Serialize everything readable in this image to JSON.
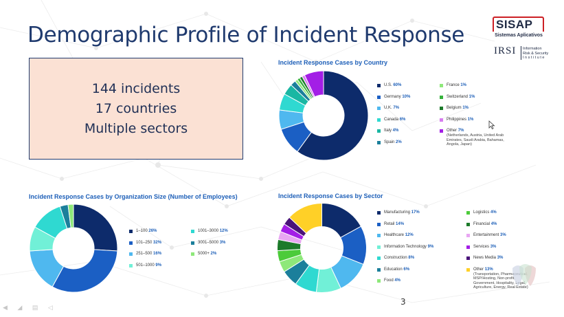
{
  "slide": {
    "title": "Demographic Profile of Incident Response",
    "callout": [
      "144 incidents",
      "17 countries",
      "Multiple sectors"
    ],
    "page_number": "3"
  },
  "logo": {
    "brand": "SISAP",
    "tagline": "Sistemas Aplicativos",
    "irsi": "IRSI",
    "irsi_line1": "Information",
    "irsi_line2": "Risk & Security",
    "irsi_line3": "I n s t i t u t e",
    "colors": {
      "red": "#cc1f24",
      "dark": "#1f2a44"
    }
  },
  "icons": [
    "cursor-arrow-icon",
    "watermark-logo-icon"
  ],
  "chart_data": [
    {
      "type": "pie",
      "title": "Incident Response Cases by Country",
      "legend_position": "right",
      "categories": [
        "U.S.",
        "Germany",
        "U.K.",
        "Canada",
        "Italy",
        "Spain",
        "France",
        "Switzerland",
        "Belgium",
        "Philippines",
        "Other"
      ],
      "values": [
        60,
        10,
        7,
        6,
        4,
        2,
        1,
        1,
        1,
        1,
        7
      ],
      "labels": [
        "60%",
        "10%",
        "7%",
        "6%",
        "4%",
        "2%",
        "1%",
        "1%",
        "1%",
        "1%",
        "7%"
      ],
      "colors": [
        "#0d2b6b",
        "#1b5fc4",
        "#4fb8ef",
        "#2fd9d1",
        "#1ab7a3",
        "#1b7f9b",
        "#8ee87a",
        "#36b23c",
        "#1c7a2a",
        "#d77cf0",
        "#a31ee6"
      ],
      "note": "(Netherlands, Austria, United Arab Emirates, Saudi Arabia, Bahamas, Angola, Japan)"
    },
    {
      "type": "pie",
      "title": "Incident Response Cases by Organization Size (Number of Employees)",
      "legend_position": "right",
      "categories": [
        "1–100",
        "101–250",
        "251–500",
        "501–1000",
        "1001–3000",
        "3001–5000",
        "5000+"
      ],
      "values": [
        26,
        32,
        16,
        9,
        12,
        3,
        2
      ],
      "labels": [
        "26%",
        "32%",
        "16%",
        "9%",
        "12%",
        "3%",
        "2%"
      ],
      "colors": [
        "#0d2b6b",
        "#1b5fc4",
        "#4fb8ef",
        "#71f0d7",
        "#2fd9d1",
        "#1b7f9b",
        "#8ee87a"
      ]
    },
    {
      "type": "pie",
      "title": "Incident Response Cases by Sector",
      "legend_position": "right",
      "categories": [
        "Manufacturing",
        "Retail",
        "Healthcare",
        "Information Technology",
        "Construction",
        "Education",
        "Food",
        "Logistics",
        "Financial",
        "Entertainment",
        "Services",
        "News Media",
        "Other"
      ],
      "values": [
        17,
        14,
        12,
        9,
        8,
        6,
        4,
        4,
        4,
        3,
        3,
        3,
        13
      ],
      "labels": [
        "17%",
        "14%",
        "12%",
        "9%",
        "8%",
        "6%",
        "4%",
        "4%",
        "4%",
        "3%",
        "3%",
        "3%",
        "13%"
      ],
      "colors": [
        "#0d2b6b",
        "#1b5fc4",
        "#4fb8ef",
        "#71f0d7",
        "#2fd9d1",
        "#1b7f9b",
        "#8ee87a",
        "#4ccb3a",
        "#1c7a2a",
        "#e8a6f2",
        "#a31ee6",
        "#4a137a",
        "#ffd027"
      ],
      "note": "(Transportation, Pharmaceutical, MSP/Hosting, Non-profit, Government, Hospitality, Legal, Agriculture, Energy, Real Estate)"
    }
  ]
}
